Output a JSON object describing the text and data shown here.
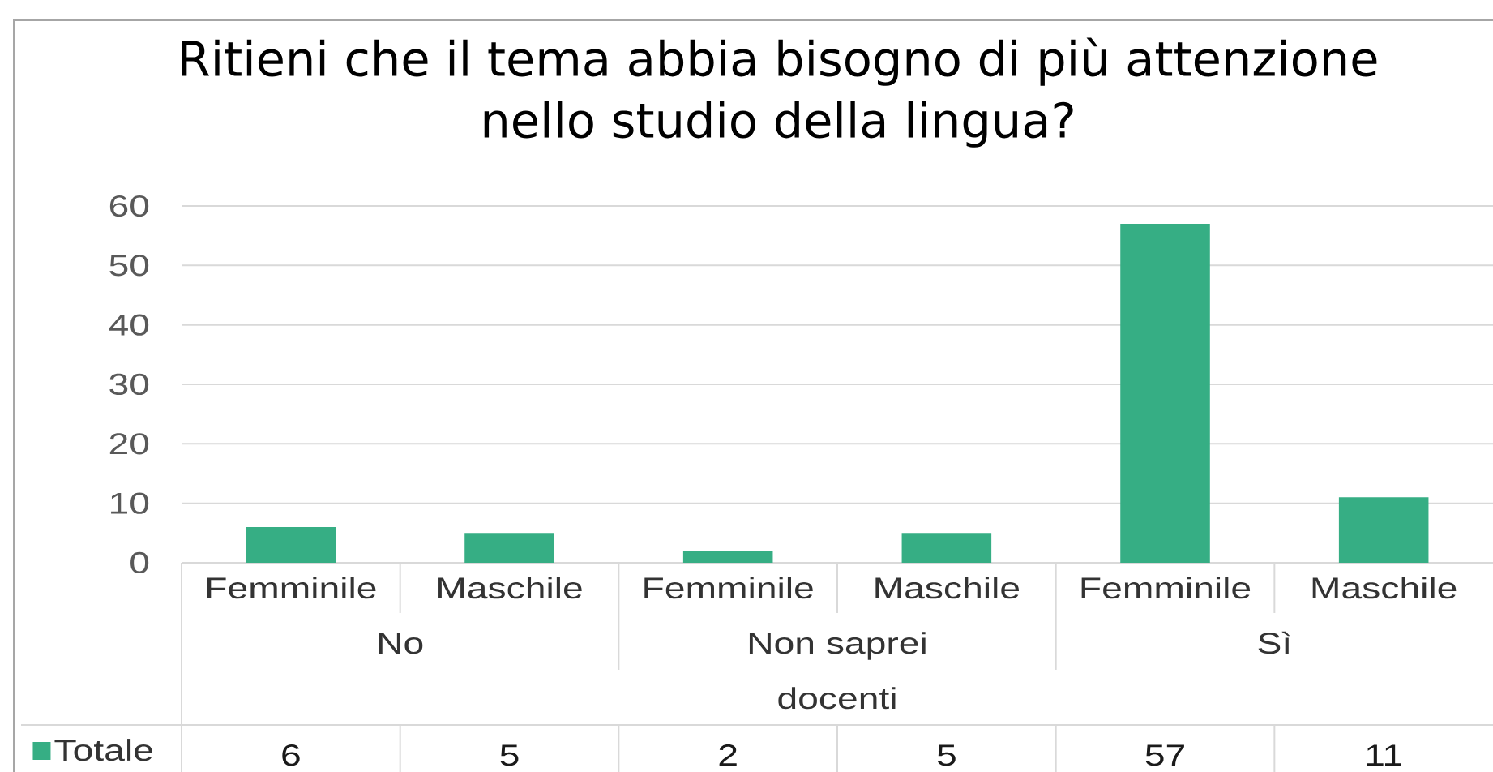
{
  "chart_data": {
    "type": "bar",
    "title": "Ritieni che il tema abbia bisogno di più attenzione nello studio della lingua?",
    "xlabel": "docenti",
    "categories": [
      "Femminile",
      "Maschile",
      "Femminile",
      "Maschile",
      "Femminile",
      "Maschile"
    ],
    "annotations": [
      "No",
      "Non saprei",
      "Sì"
    ],
    "series": [
      {
        "name": "Totale",
        "color": "#36ae84",
        "values": [
          6,
          5,
          2,
          5,
          57,
          11
        ]
      }
    ],
    "ylim": [
      0,
      60
    ],
    "yticks": [
      0,
      10,
      20,
      30,
      40,
      50,
      60
    ],
    "grid": "y",
    "legend": "bottom left",
    "data_labels": true
  }
}
